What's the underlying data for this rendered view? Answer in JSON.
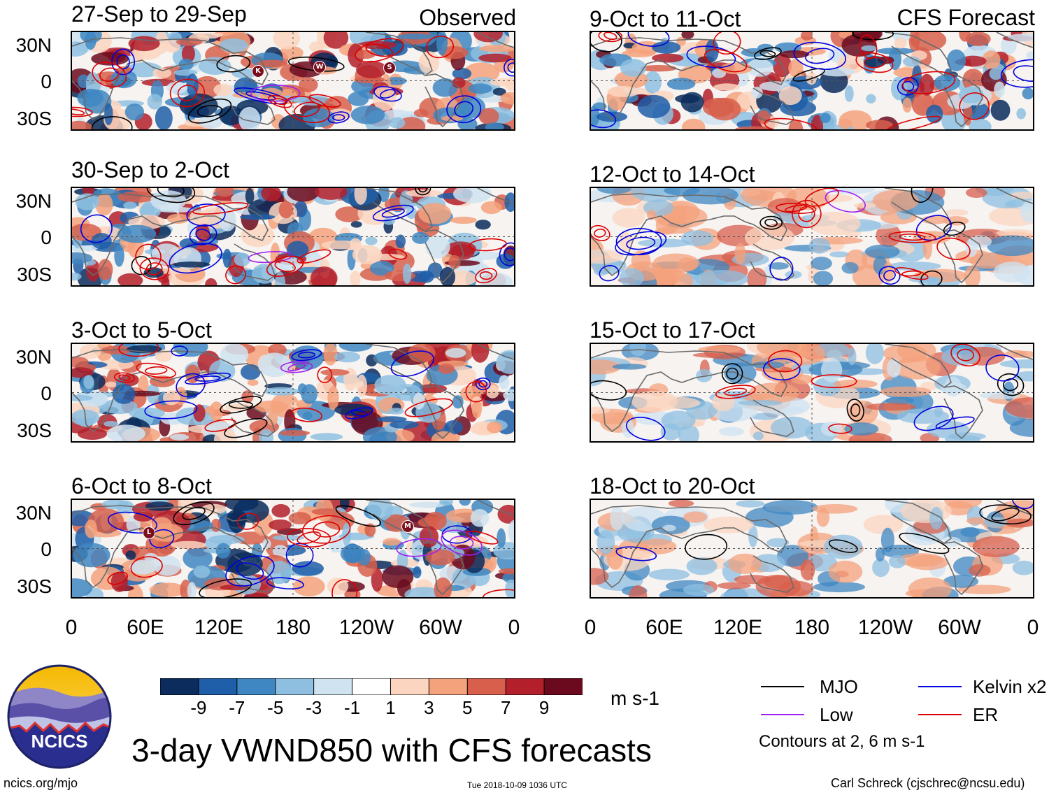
{
  "column_titles": {
    "left": "Observed",
    "right": "CFS Forecast"
  },
  "panels": {
    "observed": [
      "27-Sep to 29-Sep",
      "30-Sep to 2-Oct",
      "3-Oct to 5-Oct",
      "6-Oct to 8-Oct"
    ],
    "forecast": [
      "9-Oct to 11-Oct",
      "12-Oct to 14-Oct",
      "15-Oct to 17-Oct",
      "18-Oct to 20-Oct"
    ]
  },
  "lat_labels": [
    "30N",
    "0",
    "30S"
  ],
  "lon_labels": [
    "0",
    "60E",
    "120E",
    "180",
    "120W",
    "60W",
    "0"
  ],
  "storm_markers": {
    "panel1": [
      "K",
      "W",
      "S"
    ],
    "panel4": [
      "L",
      "M"
    ]
  },
  "colorbar": {
    "ticks": [
      "-9",
      "-7",
      "-5",
      "-3",
      "-1",
      "1",
      "3",
      "5",
      "7",
      "9"
    ],
    "colors": [
      "#0b2c5c",
      "#1f5ea8",
      "#3f87c2",
      "#8ebfe0",
      "#cfe3f1",
      "#ffffff",
      "#fbd5c0",
      "#f4a27c",
      "#d75f4c",
      "#b3202b",
      "#6b0a1e"
    ],
    "units": "m s-1"
  },
  "legend": {
    "items": [
      {
        "label": "MJO",
        "color": "#000000"
      },
      {
        "label": "Kelvin x2",
        "color": "#0000dd"
      },
      {
        "label": "Low",
        "color": "#a020f0"
      },
      {
        "label": "ER",
        "color": "#dd0000"
      }
    ],
    "note": "Contours at 2, 6 m s-1"
  },
  "title": "3-day VWND850 with CFS forecasts",
  "logo": {
    "text": "NCICS"
  },
  "footer": {
    "left": "ncics.org/mjo",
    "center": "Tue 2018-10-09 1036 UTC",
    "right": "Carl Schreck (cjschrec@ncsu.edu)"
  },
  "chart_data": {
    "type": "heatmap",
    "variable": "VWND850 anomaly",
    "units": "m s-1",
    "color_levels": [
      -9,
      -7,
      -5,
      -3,
      -1,
      1,
      3,
      5,
      7,
      9
    ],
    "x_axis": {
      "ticks": [
        "0",
        "60E",
        "120E",
        "180",
        "120W",
        "60W",
        "0"
      ],
      "range_deg_east": [
        0,
        360
      ]
    },
    "y_axis": {
      "ticks": [
        "30N",
        "0",
        "30S"
      ],
      "range_deg": [
        -40,
        40
      ]
    },
    "contours_m_s-1": [
      2,
      6
    ],
    "contour_series": [
      "MJO",
      "Kelvin x2",
      "Low",
      "ER"
    ],
    "observed_periods": [
      "27-Sep to 29-Sep",
      "30-Sep to 2-Oct",
      "3-Oct to 5-Oct",
      "6-Oct to 8-Oct"
    ],
    "forecast_periods": [
      "9-Oct to 11-Oct",
      "12-Oct to 14-Oct",
      "15-Oct to 17-Oct",
      "18-Oct to 20-Oct"
    ]
  }
}
